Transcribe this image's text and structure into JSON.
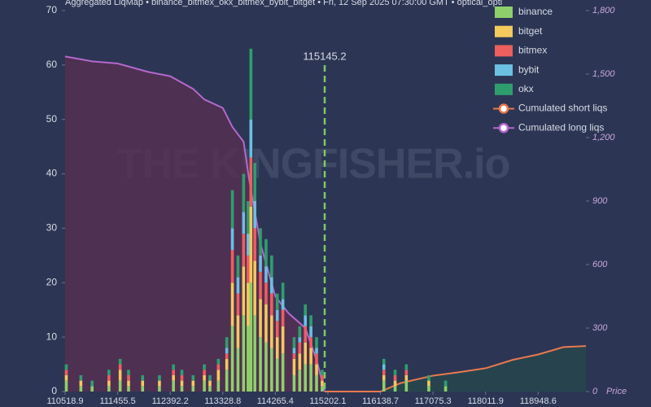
{
  "chart_data": {
    "type": "bar",
    "title": "Aggregated LiqMap  •  binance_bitmex_okx_bitmex_bybit_bitget  •  Fri, 12 Sep 2025 07:30:00 GMT  •  optical_opti",
    "watermark": "THE KINGFISHER.io",
    "y2_label": "Price",
    "price_line": 115145.2,
    "xlim": [
      110518.9,
      119800
    ],
    "xticks": [
      110518.9,
      111455.5,
      112392.2,
      113328.8,
      114265.4,
      115202.1,
      116138.7,
      117075.3,
      118011.9,
      118948.6
    ],
    "ylim": [
      0,
      70
    ],
    "yticks": [
      0,
      10,
      20,
      30,
      40,
      50,
      60,
      70
    ],
    "y2lim": [
      0,
      1800
    ],
    "y2ticks": [
      0,
      300,
      600,
      900,
      {
        "value": 1200,
        "label": "1,200"
      },
      {
        "value": 1500,
        "label": "1,500"
      },
      {
        "value": 1800,
        "label": "1,800"
      }
    ],
    "x": [
      110540,
      110800,
      111000,
      111300,
      111500,
      111650,
      111900,
      112200,
      112450,
      112600,
      112800,
      113000,
      113100,
      113250,
      113400,
      113500,
      113600,
      113700,
      113780,
      113830,
      113900,
      114000,
      114100,
      114200,
      114300,
      114400,
      114600,
      114700,
      114800,
      114900,
      115000,
      115100,
      116200,
      116400,
      116600,
      117000,
      117300
    ],
    "series": [
      {
        "name": "binance",
        "color": "#8fcf6b",
        "values": [
          2,
          1,
          1,
          1,
          2,
          1,
          1,
          1,
          2,
          1,
          1,
          2,
          1,
          2,
          4,
          12,
          8,
          14,
          12,
          20,
          14,
          10,
          9,
          8,
          6,
          7,
          3,
          4,
          5,
          5,
          3,
          1,
          2,
          1,
          2,
          1,
          1
        ]
      },
      {
        "name": "bitget",
        "color": "#f4c95d",
        "values": [
          1,
          1,
          0,
          1,
          2,
          1,
          1,
          1,
          1,
          1,
          1,
          1,
          1,
          2,
          2,
          8,
          6,
          9,
          8,
          14,
          10,
          7,
          7,
          6,
          4,
          5,
          3,
          3,
          4,
          3,
          2,
          1,
          1,
          1,
          1,
          1,
          0
        ]
      },
      {
        "name": "bitmex",
        "color": "#ec5f5f",
        "values": [
          1,
          0,
          0,
          1,
          1,
          1,
          0,
          0,
          1,
          1,
          0,
          1,
          0,
          1,
          1,
          6,
          4,
          6,
          5,
          9,
          6,
          5,
          4,
          4,
          3,
          3,
          1,
          2,
          3,
          2,
          2,
          1,
          1,
          1,
          1,
          0,
          0
        ]
      },
      {
        "name": "bybit",
        "color": "#6cc0e2",
        "values": [
          0,
          0,
          0,
          0,
          0,
          0,
          0,
          0,
          0,
          0,
          0,
          0,
          0,
          0,
          1,
          4,
          3,
          4,
          4,
          7,
          5,
          3,
          3,
          3,
          2,
          2,
          1,
          1,
          2,
          2,
          1,
          0,
          1,
          0,
          0,
          0,
          0
        ]
      },
      {
        "name": "okx",
        "color": "#2f9e6f",
        "values": [
          1,
          1,
          1,
          1,
          1,
          1,
          1,
          1,
          1,
          1,
          1,
          1,
          1,
          1,
          2,
          7,
          4,
          7,
          6,
          13,
          7,
          5,
          5,
          4,
          3,
          3,
          2,
          2,
          2,
          2,
          2,
          1,
          1,
          1,
          1,
          1,
          1
        ]
      }
    ],
    "lines": [
      {
        "name": "Cumulated short liqs",
        "color": "#e9784f",
        "axis": "y2",
        "x": [
          115145.2,
          116138.7,
          116500,
          117075.3,
          117500,
          118011.9,
          118500,
          118948.6,
          119400,
          119800
        ],
        "values": [
          0,
          0,
          40,
          75,
          90,
          110,
          150,
          175,
          210,
          215
        ]
      },
      {
        "name": "Cumulated long liqs",
        "color": "#b468cc",
        "axis": "y2",
        "x": [
          110518.9,
          111000,
          111455.5,
          112000,
          112392.2,
          112800,
          113000,
          113328.8,
          113500,
          113700,
          113800,
          114000,
          114265.4,
          114500,
          114800,
          115000,
          115145.2
        ],
        "values": [
          1583,
          1560,
          1550,
          1510,
          1490,
          1430,
          1380,
          1340,
          1250,
          1180,
          1000,
          700,
          450,
          370,
          300,
          150,
          0
        ]
      }
    ]
  }
}
